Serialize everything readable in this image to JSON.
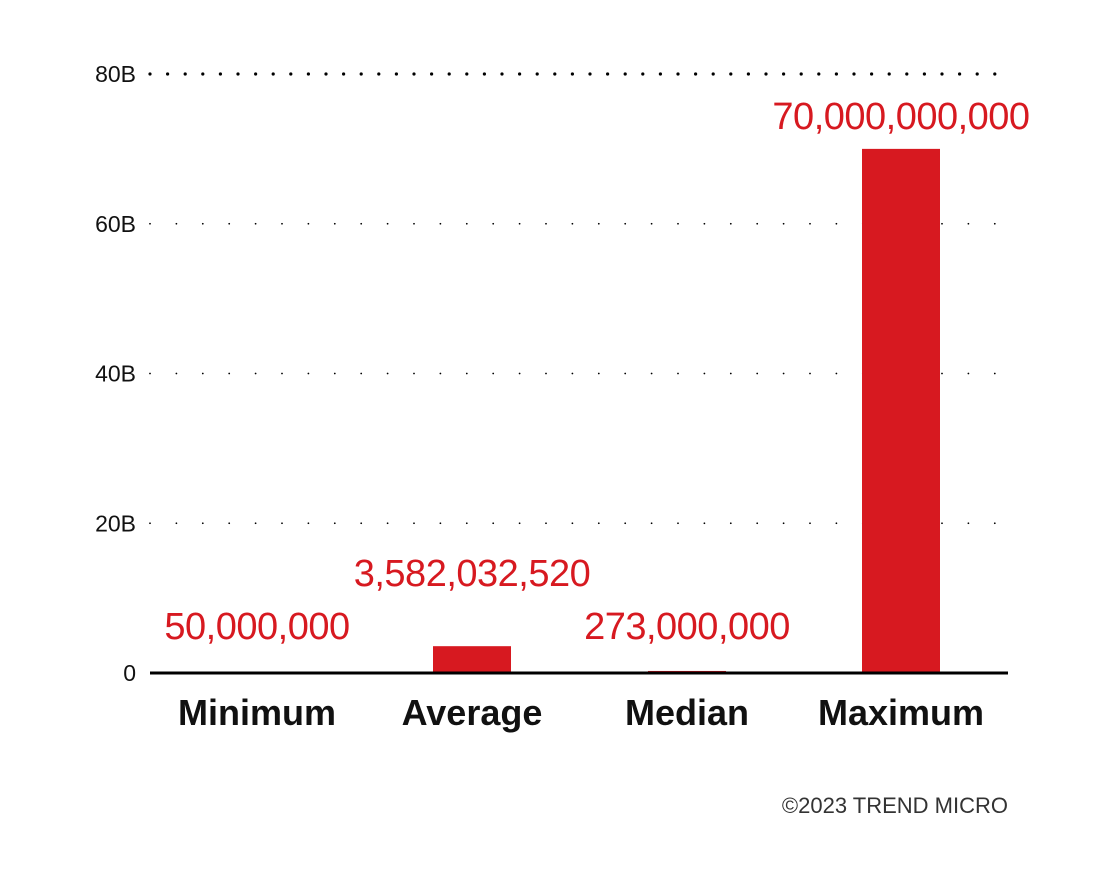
{
  "chart_data": {
    "type": "bar",
    "categories": [
      "Minimum",
      "Average",
      "Median",
      "Maximum"
    ],
    "values": [
      50000000,
      3582032520,
      273000000,
      70000000000
    ],
    "data_labels": [
      "50,000,000",
      "3,582,032,520",
      "273,000,000",
      "70,000,000,000"
    ],
    "ylim": [
      0,
      80000000000
    ],
    "yticks": [
      0,
      20000000000,
      40000000000,
      60000000000,
      80000000000
    ],
    "ytick_labels": [
      "0",
      "20B",
      "40B",
      "60B",
      "80B"
    ],
    "grid": true,
    "grid_style": "dotted",
    "bar_color": "#d71920",
    "label_color": "#d71920",
    "axis_color": "#000000"
  },
  "footer": {
    "copyright": "©2023 TREND MICRO"
  }
}
